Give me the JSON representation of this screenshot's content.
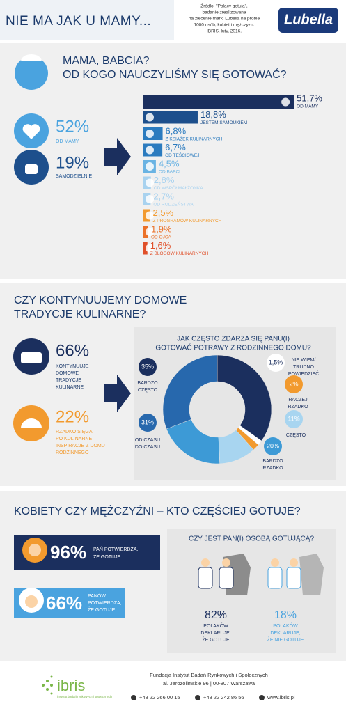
{
  "header": {
    "title": "NIE MA JAK U MAMY...",
    "source_lines": [
      "Źródło: \"Polacy gotują\",",
      "badanie zrealizowane",
      "na zlecenie marki Lubella na próbie",
      "1000 osób, kobiet i mężczyzn.",
      "IBRIS, luty, 2016."
    ],
    "brand": "Lubella"
  },
  "section1": {
    "title_lines": [
      "MAMA, BABCIA?",
      "OD KOGO NAUCZYLIŚMY SIĘ GOTOWAĆ?"
    ],
    "stats": [
      {
        "value": "52%",
        "label": "OD MAMY"
      },
      {
        "value": "19%",
        "label": "SAMODZIELNIE"
      }
    ],
    "bars": [
      {
        "label": "OD MAMY",
        "value": 51.7,
        "value_label": "51,7%",
        "color": "#1b2f5e"
      },
      {
        "label": "JESTEM SAMOUKIEM",
        "value": 18.8,
        "value_label": "18,8%",
        "color": "#1d4f8c"
      },
      {
        "label": "Z KSIĄŻEK KULINARNYCH",
        "value": 6.8,
        "value_label": "6,8%",
        "color": "#2b7bbf"
      },
      {
        "label": "OD TEŚCIOWEJ",
        "value": 6.7,
        "value_label": "6,7%",
        "color": "#2b7bbf"
      },
      {
        "label": "OD BABCI",
        "value": 4.5,
        "value_label": "4,5%",
        "color": "#69b3e3"
      },
      {
        "label": "OD WSPÓŁMAŁŻONKA",
        "value": 2.8,
        "value_label": "2,8%",
        "color": "#a8d2ef"
      },
      {
        "label": "OD RODZEŃSTWA",
        "value": 2.7,
        "value_label": "2,7%",
        "color": "#a8d2ef"
      },
      {
        "label": "Z PROGRAMÓW KULINARNYCH",
        "value": 2.5,
        "value_label": "2,5%",
        "color": "#f29a2e"
      },
      {
        "label": "OD OJCA",
        "value": 1.9,
        "value_label": "1,9%",
        "color": "#eb7128"
      },
      {
        "label": "Z BLOGÓW KULINARNYCH",
        "value": 1.6,
        "value_label": "1,6%",
        "color": "#e0502a"
      }
    ]
  },
  "section2": {
    "title_lines": [
      "CZY KONTYNUUJEMY DOMOWE",
      "TRADYCJE KULINARNE?"
    ],
    "stats": [
      {
        "value": "66%",
        "label_lines": [
          "KONTYNUUJE",
          "DOMOWE",
          "TRADYCJE",
          "KULINARNE"
        ]
      },
      {
        "value": "22%",
        "label_lines": [
          "RZADKO SIĘGA",
          "PO KULINARNE",
          "INSPIRACJE Z DOMU",
          "RODZINNEGO"
        ]
      }
    ],
    "question_lines": [
      "JAK CZĘSTO ZDARZA SIĘ PANU(I)",
      "GOTOWAĆ POTRAWY Z RODZINNEGO DOMU?"
    ],
    "segments": [
      {
        "label_lines": [
          "BARDZO",
          "CZĘSTO"
        ],
        "value": 35,
        "value_label": "35%",
        "color": "#1b2f5e"
      },
      {
        "label_lines": [
          "NIE WIEM/",
          "TRUDNO",
          "POWIEDZIEĆ"
        ],
        "value": 1.5,
        "value_label": "1,5%",
        "color": "#ffffff"
      },
      {
        "label_lines": [
          "RACZEJ",
          "RZADKO"
        ],
        "value": 2,
        "value_label": "2%",
        "color": "#f29a2e"
      },
      {
        "label_lines": [
          "CZĘSTO"
        ],
        "value": 11,
        "value_label": "11%",
        "color": "#a8d5f0"
      },
      {
        "label_lines": [
          "BARDZO",
          "RZADKO"
        ],
        "value": 20,
        "value_label": "20%",
        "color": "#3d9ad6"
      },
      {
        "label_lines": [
          "OD CZASU",
          "DO CZASU"
        ],
        "value": 31,
        "value_label": "31%",
        "color": "#2768ad"
      }
    ]
  },
  "section3": {
    "title": "KOBIETY CZY MĘŻCZYŹNI – KTO CZĘŚCIEJ GOTUJE?",
    "stats": [
      {
        "value": "96%",
        "label_lines": [
          "PAŃ POTWIERDZA,",
          "ŻE GOTUJE"
        ]
      },
      {
        "value": "66%",
        "label_lines": [
          "PANÓW",
          "POTWIERDZA,",
          "ŻE GOTUJE"
        ]
      }
    ],
    "question": "CZY JEST PAN(I) OSOBĄ GOTUJĄCĄ?",
    "answers": [
      {
        "value": "82%",
        "label_lines": [
          "POLAKÓW",
          "DEKLARUJE,",
          "ŻE GOTUJE"
        ]
      },
      {
        "value": "18%",
        "label_lines": [
          "POLAKÓW",
          "DEKLARUJE,",
          "ŻE NIE GOTUJE"
        ]
      }
    ]
  },
  "footer": {
    "logo": "ibris",
    "tagline": "instytut badań rynkowych i społecznych",
    "org_lines": [
      "Fundacja Instytut Badań Rynkowych i Społecznych",
      "al. Jerozolimskie 96 | 00-807 Warszawa"
    ],
    "phone": "+48 22 266 00 15",
    "fax": "+48 22 242 86 56",
    "web": "www.ibris.pl"
  }
}
